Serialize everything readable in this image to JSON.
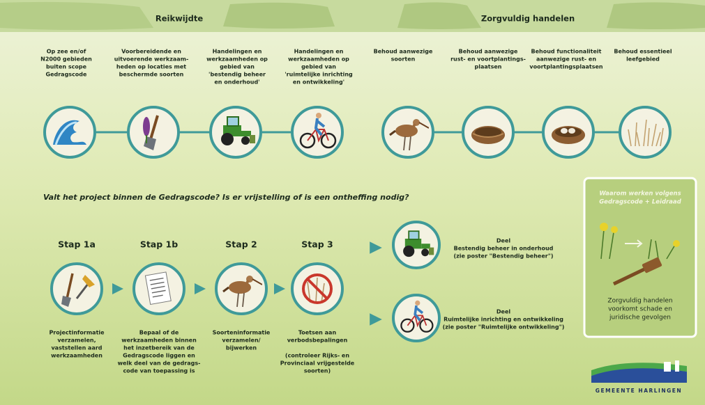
{
  "header": {
    "left_title": "Reikwijdte",
    "right_title": "Zorgvuldig handelen"
  },
  "scope_items": [
    {
      "lines": [
        "Op zee en/of",
        "N2000 gebieden",
        "buiten scope",
        "Gedragscode"
      ]
    },
    {
      "lines": [
        "Voorbereidende en",
        "uitvoerende werkzaam-",
        "heden op locaties met",
        "beschermde soorten"
      ]
    },
    {
      "lines": [
        "Handelingen en",
        "werkzaamheden op",
        "gebied van",
        "'bestendig beheer",
        "en onderhoud'"
      ]
    },
    {
      "lines": [
        "Handelingen en",
        "werkzaamheden op",
        "gebied van",
        "'ruimtelijke inrichting",
        "en ontwikkeling'"
      ]
    }
  ],
  "care_items": [
    {
      "lines": [
        "Behoud aanwezige",
        "soorten"
      ]
    },
    {
      "lines": [
        "Behoud aanwezige",
        "rust- en voortplantings-",
        "plaatsen"
      ]
    },
    {
      "lines": [
        "Behoud functionaliteit",
        "aanwezige rust- en",
        "voortplantingsplaatsen"
      ]
    },
    {
      "lines": [
        "Behoud essentieel",
        "leefgebied"
      ]
    }
  ],
  "question": "Valt het project binnen de Gedragscode? Is er vrijstelling of is een ontheffing nodig?",
  "steps": [
    {
      "label": "Stap 1a",
      "lines": [
        "Projectinformatie",
        "verzamelen,",
        "vaststellen aard",
        "werkzaamheden"
      ]
    },
    {
      "label": "Stap 1b",
      "lines": [
        "Bepaal of de",
        "werkzaamheden binnen",
        "het inzetbereik van de",
        "Gedragscode liggen en",
        "welk deel van de gedrags-",
        "code van toepassing is"
      ]
    },
    {
      "label": "Stap 2",
      "lines": [
        "Soorteninformatie",
        "verzamelen/",
        "bijwerken"
      ]
    },
    {
      "label": "Stap 3",
      "lines": [
        "Toetsen aan",
        "verbodsbepalingen"
      ],
      "note_lines": [
        "(controleer Rijks- en",
        "Provinciaal vrijgestelde",
        "soorten)"
      ]
    }
  ],
  "outcomes": [
    {
      "lines": [
        "Deel",
        "Bestendig beheer in onderhoud",
        "(zie poster \"Bestendig beheer\")"
      ]
    },
    {
      "lines": [
        "Deel",
        "Ruimtelijke inrichting en ontwikkeling",
        "(zie poster \"Ruimtelijke ontwikkeling\")"
      ]
    }
  ],
  "info_box": {
    "title_lines": [
      "Waarom werken volgens",
      "Gedragscode + Leidraad"
    ],
    "text_lines": [
      "Zorgvuldig handelen",
      "voorkomt schade en",
      "juridische gevolgen"
    ]
  },
  "logo": "GEMEENTE HARLINGEN"
}
